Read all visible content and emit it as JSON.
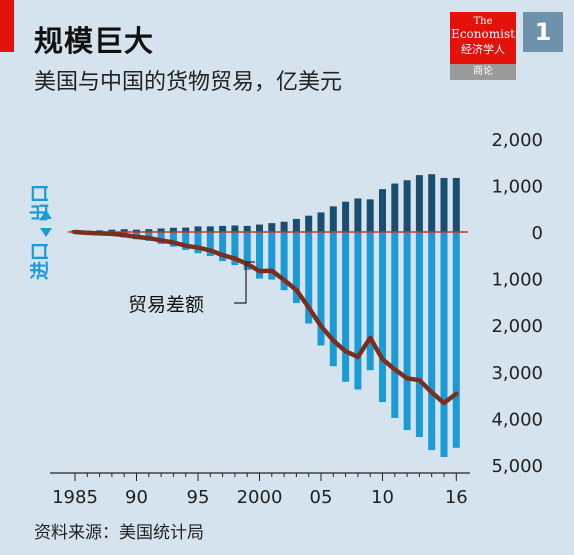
{
  "header": {
    "title": "规模巨大",
    "subtitle": "美国与中国的货物贸易，亿美元",
    "chart_number": "1"
  },
  "logo": {
    "line1": "The",
    "line2": "Economist",
    "line3": "经济学人",
    "bottom": "商论"
  },
  "footer": {
    "source": "资料来源：美国统计局"
  },
  "colors": {
    "background": "#d4e3ee",
    "exports": "#1a4e6e",
    "imports": "#1a9bd6",
    "balance": "#7b2e1e",
    "zero_line": "#c0392b",
    "accent": "#e3120b"
  },
  "chart_data": {
    "type": "bar",
    "title": "规模巨大",
    "subtitle": "美国与中国的货物贸易，亿美元",
    "years": [
      1985,
      1986,
      1987,
      1988,
      1989,
      1990,
      1991,
      1992,
      1993,
      1994,
      1995,
      1996,
      1997,
      1998,
      1999,
      2000,
      2001,
      2002,
      2003,
      2004,
      2005,
      2006,
      2007,
      2008,
      2009,
      2010,
      2011,
      2012,
      2013,
      2014,
      2015,
      2016
    ],
    "x_tick_labels": [
      "1985",
      "90",
      "95",
      "2000",
      "05",
      "10",
      "16"
    ],
    "x_tick_years": [
      1985,
      1990,
      1995,
      2000,
      2005,
      2010,
      2016
    ],
    "y_tick_labels": [
      "2,000",
      "1,000",
      "0",
      "1,000",
      "2,000",
      "3,000",
      "4,000",
      "5,000"
    ],
    "y_tick_values": [
      2000,
      1000,
      0,
      -1000,
      -2000,
      -3000,
      -4000,
      -5000
    ],
    "ylim": [
      -5000,
      2000
    ],
    "axis_side_label_exports": "出口",
    "axis_side_label_imports": "进口",
    "series": [
      {
        "name": "出口",
        "values": [
          40,
          30,
          35,
          50,
          60,
          50,
          60,
          75,
          90,
          95,
          120,
          120,
          130,
          140,
          130,
          160,
          190,
          220,
          280,
          350,
          420,
          550,
          650,
          720,
          700,
          920,
          1040,
          1110,
          1220,
          1240,
          1160,
          1160
        ]
      },
      {
        "name": "进口",
        "values": [
          -40,
          -50,
          -60,
          -85,
          -120,
          -155,
          -190,
          -255,
          -315,
          -385,
          -455,
          -515,
          -625,
          -710,
          -815,
          -1000,
          -1020,
          -1250,
          -1525,
          -1965,
          -2435,
          -2880,
          -3215,
          -3380,
          -2965,
          -3650,
          -3990,
          -4250,
          -4400,
          -4680,
          -4830,
          -4630
        ]
      },
      {
        "name": "贸易差额",
        "values": [
          0,
          -20,
          -30,
          -40,
          -65,
          -105,
          -130,
          -180,
          -225,
          -295,
          -335,
          -395,
          -495,
          -570,
          -685,
          -840,
          -830,
          -1030,
          -1245,
          -1620,
          -2020,
          -2330,
          -2560,
          -2680,
          -2270,
          -2730,
          -2950,
          -3140,
          -3180,
          -3440,
          -3670,
          -3470
        ]
      }
    ],
    "annotation": "贸易差额",
    "grid": false,
    "legend": "none"
  }
}
